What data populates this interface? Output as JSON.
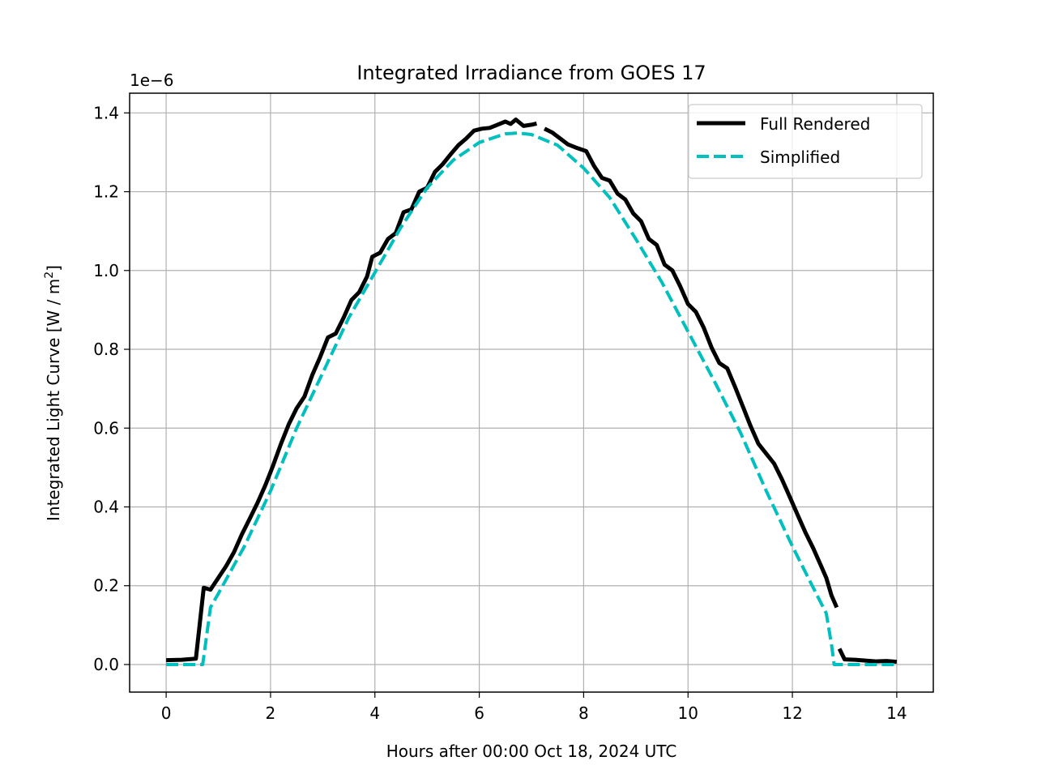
{
  "chart_data": {
    "type": "line",
    "title": "Integrated Irradiance from GOES 17",
    "xlabel": "Hours after 00:00 Oct 18, 2024 UTC",
    "ylabel": "Integrated Light Curve [W / m",
    "ylabel_sup": "2",
    "ylabel_end": "]",
    "y_scale_label": "1e−6",
    "y_multiplier": 1e-06,
    "xlim": [
      -0.7,
      14.7
    ],
    "ylim": [
      -0.07,
      1.45
    ],
    "xticks": [
      0,
      2,
      4,
      6,
      8,
      10,
      12,
      14
    ],
    "xtick_labels": [
      "0",
      "2",
      "4",
      "6",
      "8",
      "10",
      "12",
      "14"
    ],
    "yticks": [
      0.0,
      0.2,
      0.4,
      0.6,
      0.8,
      1.0,
      1.2,
      1.4
    ],
    "ytick_labels": [
      "0.0",
      "0.2",
      "0.4",
      "0.6",
      "0.8",
      "1.0",
      "1.2",
      "1.4"
    ],
    "grid": true,
    "legend_position": "top-right",
    "series": [
      {
        "name": "Full Rendered",
        "color": "#000000",
        "style": "solid",
        "segments": [
          [
            [
              0,
              0.011
            ],
            [
              0.3,
              0.012
            ],
            [
              0.57,
              0.015
            ],
            [
              0.72,
              0.195
            ],
            [
              0.85,
              0.19
            ],
            [
              1.0,
              0.22
            ],
            [
              1.15,
              0.25
            ],
            [
              1.3,
              0.285
            ],
            [
              1.45,
              0.33
            ],
            [
              1.6,
              0.37
            ],
            [
              1.75,
              0.41
            ],
            [
              1.9,
              0.455
            ],
            [
              2.05,
              0.505
            ],
            [
              2.2,
              0.56
            ],
            [
              2.35,
              0.61
            ],
            [
              2.5,
              0.65
            ],
            [
              2.65,
              0.68
            ],
            [
              2.8,
              0.735
            ],
            [
              2.95,
              0.78
            ],
            [
              3.1,
              0.83
            ],
            [
              3.25,
              0.84
            ],
            [
              3.4,
              0.88
            ],
            [
              3.55,
              0.925
            ],
            [
              3.7,
              0.945
            ],
            [
              3.85,
              0.985
            ],
            [
              3.95,
              1.035
            ],
            [
              4.1,
              1.045
            ],
            [
              4.25,
              1.08
            ],
            [
              4.4,
              1.095
            ],
            [
              4.55,
              1.148
            ],
            [
              4.7,
              1.155
            ],
            [
              4.85,
              1.2
            ],
            [
              5.0,
              1.21
            ],
            [
              5.15,
              1.25
            ],
            [
              5.3,
              1.27
            ],
            [
              5.45,
              1.295
            ],
            [
              5.6,
              1.318
            ],
            [
              5.75,
              1.335
            ],
            [
              5.9,
              1.355
            ],
            [
              6.05,
              1.36
            ],
            [
              6.2,
              1.362
            ],
            [
              6.35,
              1.37
            ],
            [
              6.5,
              1.378
            ],
            [
              6.6,
              1.372
            ],
            [
              6.7,
              1.383
            ],
            [
              6.85,
              1.367
            ],
            [
              7.0,
              1.37
            ],
            [
              7.1,
              1.373
            ]
          ],
          [
            [
              7.25,
              1.36
            ],
            [
              7.4,
              1.35
            ],
            [
              7.55,
              1.335
            ],
            [
              7.7,
              1.32
            ],
            [
              7.85,
              1.312
            ],
            [
              8.05,
              1.303
            ],
            [
              8.2,
              1.265
            ],
            [
              8.35,
              1.235
            ],
            [
              8.5,
              1.228
            ],
            [
              8.65,
              1.195
            ],
            [
              8.8,
              1.18
            ],
            [
              8.95,
              1.145
            ],
            [
              9.1,
              1.125
            ],
            [
              9.25,
              1.08
            ],
            [
              9.4,
              1.065
            ],
            [
              9.55,
              1.015
            ],
            [
              9.7,
              1.0
            ],
            [
              9.85,
              0.96
            ],
            [
              10.0,
              0.915
            ],
            [
              10.15,
              0.895
            ],
            [
              10.3,
              0.855
            ],
            [
              10.45,
              0.805
            ],
            [
              10.6,
              0.765
            ],
            [
              10.75,
              0.752
            ],
            [
              10.9,
              0.705
            ],
            [
              11.05,
              0.655
            ],
            [
              11.2,
              0.605
            ],
            [
              11.35,
              0.56
            ],
            [
              11.5,
              0.535
            ],
            [
              11.65,
              0.51
            ],
            [
              11.8,
              0.47
            ],
            [
              11.95,
              0.425
            ],
            [
              12.1,
              0.38
            ],
            [
              12.25,
              0.335
            ],
            [
              12.4,
              0.295
            ],
            [
              12.55,
              0.25
            ],
            [
              12.65,
              0.22
            ],
            [
              12.75,
              0.175
            ],
            [
              12.85,
              0.145
            ]
          ],
          [
            [
              12.9,
              0.04
            ],
            [
              13.0,
              0.013
            ],
            [
              13.2,
              0.012
            ],
            [
              13.4,
              0.01
            ],
            [
              13.6,
              0.008
            ],
            [
              13.8,
              0.009
            ],
            [
              14.0,
              0.007
            ]
          ]
        ]
      },
      {
        "name": "Simplified",
        "color": "#00bfbf",
        "style": "dashed",
        "segments": [
          [
            [
              0,
              0.0
            ],
            [
              0.7,
              0.0
            ],
            [
              0.85,
              0.145
            ],
            [
              1.0,
              0.18
            ],
            [
              1.5,
              0.3
            ],
            [
              2.0,
              0.44
            ],
            [
              2.5,
              0.6
            ],
            [
              3.0,
              0.74
            ],
            [
              3.5,
              0.88
            ],
            [
              4.0,
              0.995
            ],
            [
              4.5,
              1.11
            ],
            [
              5.0,
              1.21
            ],
            [
              5.5,
              1.28
            ],
            [
              6.0,
              1.325
            ],
            [
              6.5,
              1.347
            ],
            [
              6.75,
              1.349
            ],
            [
              7.0,
              1.345
            ],
            [
              7.5,
              1.318
            ],
            [
              8.0,
              1.26
            ],
            [
              8.5,
              1.185
            ],
            [
              9.0,
              1.08
            ],
            [
              9.5,
              0.97
            ],
            [
              10.0,
              0.845
            ],
            [
              10.5,
              0.72
            ],
            [
              11.0,
              0.59
            ],
            [
              11.5,
              0.44
            ],
            [
              12.0,
              0.3
            ],
            [
              12.4,
              0.195
            ],
            [
              12.65,
              0.13
            ],
            [
              12.75,
              0.05
            ],
            [
              12.8,
              0.0
            ],
            [
              14.0,
              0.0
            ]
          ]
        ]
      }
    ]
  }
}
